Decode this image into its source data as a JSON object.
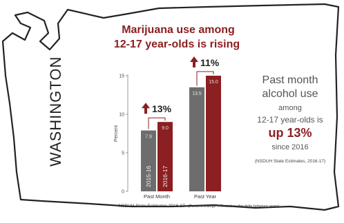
{
  "colors": {
    "accent": "#8b1f22",
    "bar_gray": "#6d6d6d",
    "bar_red": "#8b1f22",
    "text_dark": "#222222",
    "text_mid": "#444444",
    "map_outline": "#222222"
  },
  "map_label": "WASHINGTON",
  "headline": {
    "line1": "Marijuana use among",
    "line2": "12-17 year-olds is rising"
  },
  "side_panel": {
    "line1": "Past month",
    "line2": "alcohol use",
    "line3": "among",
    "line4": "12-17 year-olds is",
    "line5": "up 13%",
    "line6": "since 2016",
    "source": "(NSDUH State Estimates, 2016-17)"
  },
  "footnote": {
    "main": "NSDUH State Estimates 2016-17",
    "sub": "(Percent change reflected as the delta between years)"
  },
  "chart_data": {
    "type": "bar",
    "categories": [
      "Past Month",
      "Past Year"
    ],
    "series": [
      {
        "name": "2015-16",
        "values": [
          7.9,
          13.5
        ],
        "color": "#6d6d6d"
      },
      {
        "name": "2016-17",
        "values": [
          9.0,
          15.0
        ],
        "color": "#8b1f22"
      }
    ],
    "data_labels": [
      [
        "7.9",
        "9.0"
      ],
      [
        "13.5",
        "15.0"
      ]
    ],
    "changes": [
      "13%",
      "11%"
    ],
    "ylabel": "Percent",
    "ylim": [
      0,
      15
    ],
    "yticks": [
      "0",
      "5",
      "10",
      "15"
    ],
    "grid": false,
    "legend": "none (series names printed inside bars)"
  }
}
